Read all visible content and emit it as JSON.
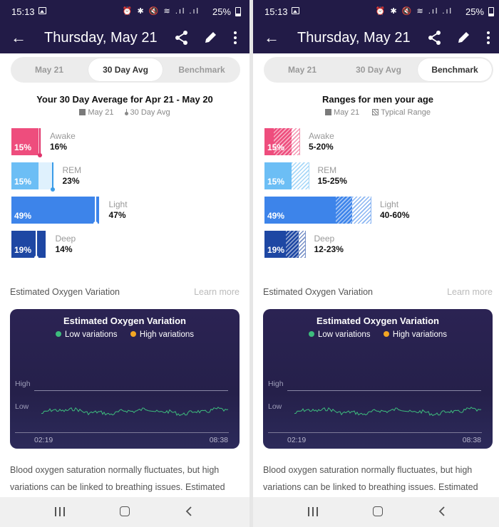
{
  "status_bar": {
    "time": "15:13",
    "battery": "25%",
    "icons": "⏰ ✱ 🔇 ≋ .ıl .ıl"
  },
  "app_bar": {
    "title": "Thursday, May 21"
  },
  "tabs": [
    "May 21",
    "30 Day Avg",
    "Benchmark"
  ],
  "left_panel": {
    "active_tab": "30 Day Avg",
    "title": "Your 30 Day Average for Apr 21 - May 20",
    "legend_today": "May 21",
    "legend_avg": "30 Day Avg",
    "stages": [
      {
        "name": "Awake",
        "pct": "15%",
        "value": 15,
        "avg_label": "16%",
        "avg_value": 16,
        "color": "#ee4d7d",
        "marker_color": "#e0336b"
      },
      {
        "name": "REM",
        "pct": "15%",
        "value": 15,
        "avg_label": "23%",
        "avg_value": 23,
        "color": "#6cbef5",
        "marker_color": "#3a9ce8"
      },
      {
        "name": "Light",
        "pct": "49%",
        "value": 49,
        "avg_label": "47%",
        "avg_value": 47,
        "color": "#3d84ea",
        "marker_color": "#ffffff"
      },
      {
        "name": "Deep",
        "pct": "19%",
        "value": 19,
        "avg_label": "14%",
        "avg_value": 14,
        "color": "#1e47a3",
        "marker_color": "#ffffff"
      }
    ]
  },
  "right_panel": {
    "active_tab": "Benchmark",
    "title": "Ranges for men your age",
    "legend_today": "May 21",
    "legend_range": "Typical Range",
    "stages": [
      {
        "name": "Awake",
        "pct": "15%",
        "value": 15,
        "range_label": "5-20%",
        "range": [
          5,
          20
        ],
        "color": "#ee4d7d"
      },
      {
        "name": "REM",
        "pct": "15%",
        "value": 15,
        "range_label": "15-25%",
        "range": [
          15,
          25
        ],
        "color": "#6cbef5"
      },
      {
        "name": "Light",
        "pct": "49%",
        "value": 49,
        "range_label": "40-60%",
        "range": [
          40,
          60
        ],
        "color": "#3d84ea"
      },
      {
        "name": "Deep",
        "pct": "19%",
        "value": 19,
        "range_label": "12-23%",
        "range": [
          12,
          23
        ],
        "color": "#1e47a3"
      }
    ]
  },
  "oxygen": {
    "section_header": "Estimated Oxygen Variation",
    "learn_more": "Learn more",
    "card_title": "Estimated Oxygen Variation",
    "legend_low": "Low variations",
    "legend_high": "High variations",
    "low_color": "#3dbd7d",
    "high_color": "#f2a623",
    "level_high": "High",
    "level_low": "Low",
    "start_time": "02:19",
    "end_time": "08:38"
  },
  "body_text": "Blood oxygen saturation normally fluctuates, but high variations can be linked to breathing issues. Estimated"
}
